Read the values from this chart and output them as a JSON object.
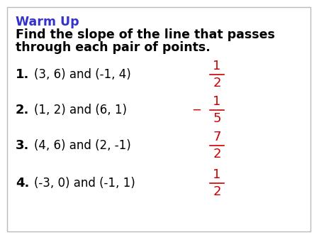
{
  "background_color": "#ffffff",
  "border_color": "#bbbbbb",
  "warm_up_text": "Warm Up",
  "warm_up_color": "#3333cc",
  "subtitle_line1": "Find the slope of the line that passes",
  "subtitle_line2": "through each pair of points.",
  "subtitle_color": "#000000",
  "problems": [
    {
      "num": "1.",
      "question": "(3, 6) and (-1, 4)",
      "answer_num": "1",
      "answer_den": "2",
      "negative": false
    },
    {
      "num": "2.",
      "question": "(1, 2) and (6, 1)",
      "answer_num": "1",
      "answer_den": "5",
      "negative": true
    },
    {
      "num": "3.",
      "question": "(4, 6) and (2, -1)",
      "answer_num": "7",
      "answer_den": "2",
      "negative": false
    },
    {
      "num": "4.",
      "question": "(-3, 0) and (-1, 1)",
      "answer_num": "1",
      "answer_den": "2",
      "negative": false
    }
  ],
  "answer_color": "#cc0000",
  "bold_num_color": "#000000",
  "question_color": "#000000",
  "fig_width": 4.5,
  "fig_height": 3.38,
  "dpi": 100
}
